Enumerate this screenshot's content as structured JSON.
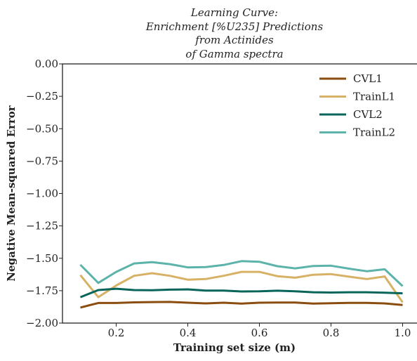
{
  "chart_data": {
    "type": "line",
    "title_lines": [
      "Learning Curve:",
      "Enrichment [%U235] Predictions",
      "from Actinides",
      "of Gamma spectra"
    ],
    "xlabel": "Training set size (m)",
    "ylabel": "Negative Mean-squared Error",
    "xlim": [
      0.05,
      1.05
    ],
    "ylim": [
      -2.0,
      0.0
    ],
    "xticks": [
      0.2,
      0.4,
      0.6,
      0.8,
      1.0
    ],
    "xtick_labels": [
      "0.2",
      "0.4",
      "0.6",
      "0.8",
      "1.0"
    ],
    "yticks": [
      0.0,
      -0.25,
      -0.5,
      -0.75,
      -1.0,
      -1.25,
      -1.5,
      -1.75,
      -2.0
    ],
    "ytick_labels": [
      "0.00",
      "−0.25",
      "−0.50",
      "−0.75",
      "−1.00",
      "−1.25",
      "−1.50",
      "−1.75",
      "−2.00"
    ],
    "grid": false,
    "legend_position": "top-right",
    "x": [
      0.1,
      0.15,
      0.2,
      0.25,
      0.3,
      0.35,
      0.4,
      0.45,
      0.5,
      0.55,
      0.6,
      0.65,
      0.7,
      0.75,
      0.8,
      0.85,
      0.9,
      0.95,
      1.0
    ],
    "series": [
      {
        "name": "CVL1",
        "color": "#8a4d0f",
        "values": [
          -1.88,
          -1.845,
          -1.845,
          -1.84,
          -1.838,
          -1.837,
          -1.843,
          -1.848,
          -1.843,
          -1.85,
          -1.843,
          -1.842,
          -1.842,
          -1.85,
          -1.847,
          -1.844,
          -1.844,
          -1.848,
          -1.86
        ]
      },
      {
        "name": "TrainL1",
        "color": "#d7b165",
        "values": [
          -1.63,
          -1.8,
          -1.71,
          -1.635,
          -1.615,
          -1.635,
          -1.665,
          -1.66,
          -1.635,
          -1.605,
          -1.605,
          -1.638,
          -1.65,
          -1.627,
          -1.622,
          -1.642,
          -1.66,
          -1.64,
          -1.84
        ]
      },
      {
        "name": "CVL2",
        "color": "#07655a",
        "values": [
          -1.8,
          -1.745,
          -1.735,
          -1.745,
          -1.747,
          -1.742,
          -1.74,
          -1.749,
          -1.749,
          -1.756,
          -1.755,
          -1.75,
          -1.755,
          -1.762,
          -1.764,
          -1.762,
          -1.762,
          -1.766,
          -1.77
        ]
      },
      {
        "name": "TrainL2",
        "color": "#5cb3a9",
        "values": [
          -1.55,
          -1.69,
          -1.605,
          -1.54,
          -1.53,
          -1.545,
          -1.57,
          -1.568,
          -1.552,
          -1.522,
          -1.527,
          -1.561,
          -1.578,
          -1.56,
          -1.557,
          -1.58,
          -1.6,
          -1.585,
          -1.715
        ]
      }
    ]
  }
}
